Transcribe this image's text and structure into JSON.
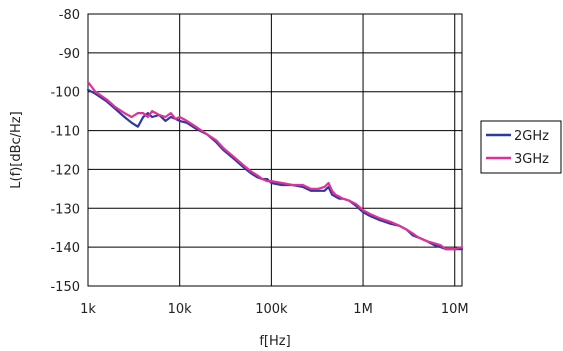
{
  "chart_data": {
    "type": "line",
    "title": "",
    "xlabel": "f[Hz]",
    "ylabel": "L(f)[dBc/Hz]",
    "x_scale": "log",
    "xlim": [
      1000,
      12000000
    ],
    "ylim": [
      -150,
      -80
    ],
    "x_ticks": [
      1000,
      10000,
      100000,
      1000000,
      10000000
    ],
    "x_tick_labels": [
      "1k",
      "10k",
      "100k",
      "1M",
      "10M"
    ],
    "y_ticks": [
      -150,
      -140,
      -130,
      -120,
      -110,
      -100,
      -90,
      -80
    ],
    "y_tick_labels": [
      "-150",
      "-140",
      "-130",
      "-120",
      "-110",
      "-100",
      "-90",
      "-80"
    ],
    "grid": true,
    "legend_position": "right",
    "series": [
      {
        "name": "2GHz",
        "color": "#2b3aa0",
        "x": [
          1000,
          1200,
          1600,
          2000,
          2500,
          3000,
          3500,
          4000,
          4500,
          5000,
          6000,
          7000,
          8000,
          9000,
          10000,
          12000,
          15000,
          20000,
          25000,
          30000,
          40000,
          50000,
          60000,
          70000,
          80000,
          90000,
          100000,
          130000,
          170000,
          220000,
          270000,
          320000,
          380000,
          420000,
          460000,
          500000,
          550000,
          600000,
          700000,
          850000,
          1000000,
          1200000,
          1500000,
          2000000,
          2500000,
          3000000,
          3500000,
          4000000,
          5000000,
          6000000,
          7000000,
          8000000,
          10000000,
          12000000
        ],
        "values": [
          -99.5,
          -100.5,
          -102.5,
          -104.5,
          -106.5,
          -108,
          -109,
          -106.5,
          -105.5,
          -106.5,
          -106,
          -107.5,
          -106.5,
          -107,
          -107.5,
          -108,
          -109.5,
          -111,
          -113,
          -115,
          -117.5,
          -119.5,
          -121,
          -122,
          -122.5,
          -122.5,
          -123.5,
          -124,
          -124,
          -124.5,
          -125.5,
          -125.5,
          -125.5,
          -124.5,
          -126.5,
          -127,
          -127.5,
          -127.5,
          -128,
          -129.5,
          -131,
          -132,
          -133,
          -134,
          -134.5,
          -135.5,
          -137,
          -137.5,
          -138.5,
          -139.5,
          -140,
          -140.5,
          -140.5,
          -140.5
        ]
      },
      {
        "name": "3GHz",
        "color": "#e0309a",
        "x": [
          1000,
          1200,
          1600,
          2000,
          2500,
          3000,
          3500,
          4000,
          4500,
          5000,
          6000,
          7000,
          8000,
          9000,
          10000,
          12000,
          15000,
          20000,
          25000,
          30000,
          40000,
          50000,
          60000,
          70000,
          80000,
          90000,
          100000,
          130000,
          170000,
          220000,
          270000,
          320000,
          380000,
          420000,
          460000,
          500000,
          550000,
          600000,
          700000,
          850000,
          1000000,
          1200000,
          1500000,
          2000000,
          2500000,
          3000000,
          3500000,
          4000000,
          5000000,
          6000000,
          7000000,
          8000000,
          10000000,
          12000000
        ],
        "values": [
          -97.5,
          -100,
          -102,
          -104,
          -105.5,
          -106.5,
          -105.5,
          -105.5,
          -106.5,
          -105,
          -106,
          -106.5,
          -105.5,
          -107,
          -106.5,
          -107.5,
          -109,
          -111,
          -112.5,
          -114.5,
          -117,
          -119,
          -120.5,
          -121.5,
          -122.5,
          -123,
          -123,
          -123.5,
          -124,
          -124,
          -125,
          -125,
          -124.5,
          -123.5,
          -125.5,
          -126.5,
          -127,
          -127.5,
          -128,
          -129,
          -130.5,
          -131.5,
          -132.5,
          -133.5,
          -134.5,
          -135.5,
          -136.5,
          -137.5,
          -138.5,
          -139,
          -139.5,
          -140.5,
          -140.5,
          -140
        ]
      }
    ]
  }
}
